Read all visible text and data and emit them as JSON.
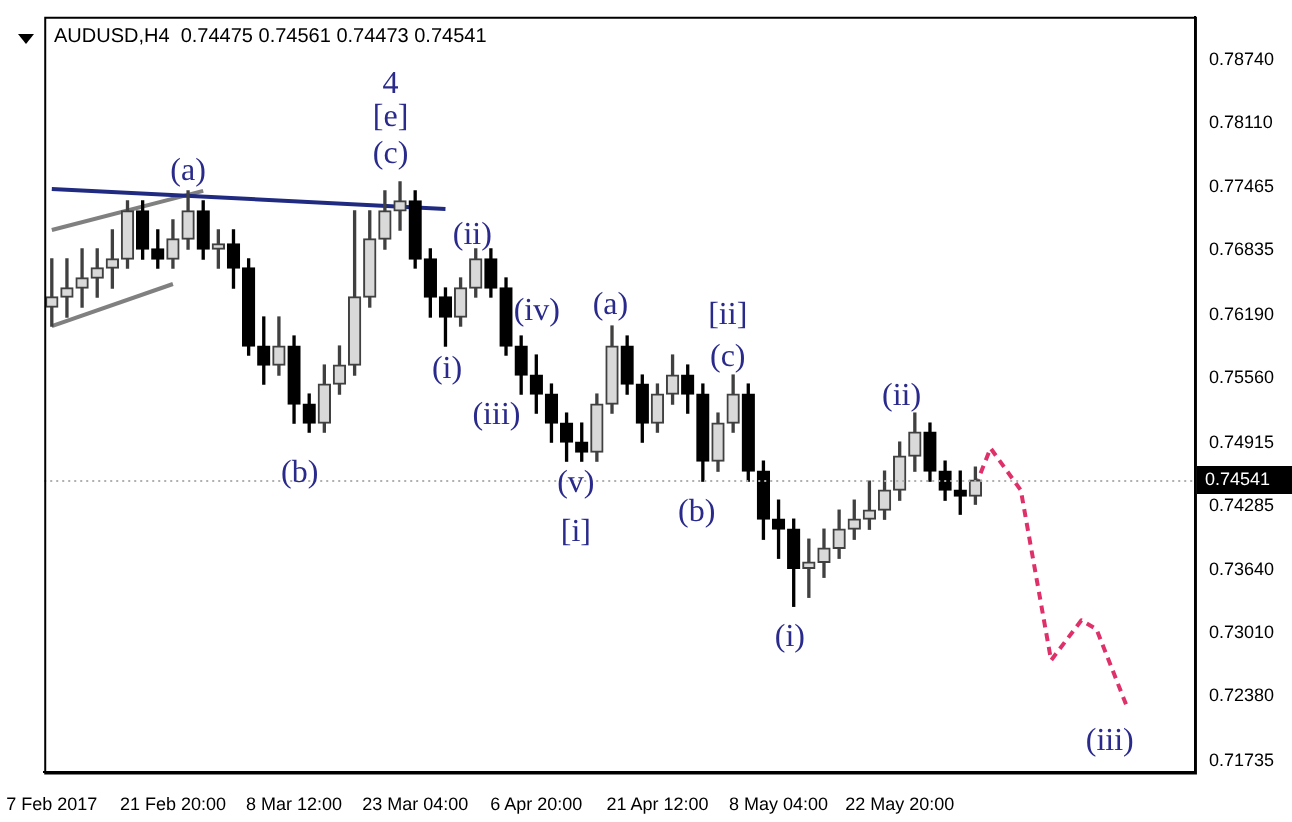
{
  "chart_data": {
    "type": "candlestick",
    "title": "AUDUSD,H4  0.74475 0.74561 0.74473 0.74541",
    "colors": [
      "#404040",
      "#404040",
      "#404040",
      "#404040",
      "#404040",
      "#404040",
      "#000000",
      "#000000",
      "#404040",
      "#404040",
      "#000000",
      "#404040",
      "#000000",
      "#000000",
      "#000000",
      "#404040",
      "#000000",
      "#000000",
      "#404040",
      "#404040",
      "#404040",
      "#404040",
      "#404040",
      "#404040",
      "#000000",
      "#000000",
      "#000000",
      "#404040",
      "#404040",
      "#000000",
      "#000000",
      "#000000",
      "#000000",
      "#000000",
      "#000000",
      "#000000",
      "#404040",
      "#404040",
      "#000000",
      "#000000",
      "#404040",
      "#404040",
      "#000000",
      "#000000",
      "#404040",
      "#404040",
      "#000000",
      "#000000",
      "#000000",
      "#000000",
      "#404040",
      "#404040",
      "#404040",
      "#404040",
      "#404040",
      "#404040",
      "#404040",
      "#404040",
      "#000000",
      "#000000",
      "#000000",
      "#404040",
      null,
      null,
      null,
      null,
      null,
      null,
      null,
      null,
      null,
      null,
      null,
      null,
      null,
      null
    ],
    "categories": [
      "7 Feb 2017",
      null,
      null,
      null,
      null,
      null,
      null,
      null,
      "21 Feb 20:00",
      null,
      null,
      null,
      null,
      null,
      null,
      null,
      "8 Mar 12:00",
      null,
      null,
      null,
      null,
      null,
      null,
      null,
      "23 Mar 04:00",
      null,
      null,
      null,
      null,
      null,
      null,
      null,
      "6 Apr 20:00",
      null,
      null,
      null,
      null,
      null,
      null,
      null,
      "21 Apr 12:00",
      null,
      null,
      null,
      null,
      null,
      null,
      null,
      "8 May 04:00",
      null,
      null,
      null,
      null,
      null,
      null,
      null,
      "22 May 20:00",
      null,
      null,
      null,
      null,
      null,
      null,
      null,
      null,
      null,
      null,
      null,
      null,
      null,
      null,
      null,
      null,
      null,
      null,
      null
    ],
    "ohlc": [
      [
        0.7627,
        0.7675,
        0.7608,
        0.7637
      ],
      [
        0.7637,
        0.7675,
        0.7617,
        0.7646
      ],
      [
        0.7646,
        0.7685,
        0.7627,
        0.7656
      ],
      [
        0.7656,
        0.7685,
        0.7637,
        0.7666
      ],
      [
        0.7666,
        0.7704,
        0.7646,
        0.7675
      ],
      [
        0.7675,
        0.7733,
        0.7666,
        0.7723
      ],
      [
        0.7723,
        0.7733,
        0.7675,
        0.7685
      ],
      [
        0.7685,
        0.7704,
        0.7666,
        0.7675
      ],
      [
        0.7675,
        0.7714,
        0.7666,
        0.7695
      ],
      [
        0.7695,
        0.7743,
        0.7685,
        0.7723
      ],
      [
        0.7723,
        0.7733,
        0.7675,
        0.7685
      ],
      [
        0.7685,
        0.7704,
        0.7666,
        0.769
      ],
      [
        0.769,
        0.7704,
        0.7646,
        0.7666
      ],
      [
        0.7666,
        0.7675,
        0.7579,
        0.7588
      ],
      [
        0.7588,
        0.7617,
        0.755,
        0.7569
      ],
      [
        0.7569,
        0.7617,
        0.7559,
        0.7588
      ],
      [
        0.7588,
        0.7598,
        0.7511,
        0.753
      ],
      [
        0.753,
        0.754,
        0.7502,
        0.7511
      ],
      [
        0.7511,
        0.7569,
        0.7502,
        0.755
      ],
      [
        0.755,
        0.7588,
        0.754,
        0.7569
      ],
      [
        0.7569,
        0.7723,
        0.7559,
        0.7637
      ],
      [
        0.7637,
        0.7723,
        0.7627,
        0.7695
      ],
      [
        0.7695,
        0.7743,
        0.7685,
        0.7723
      ],
      [
        0.7723,
        0.7752,
        0.7704,
        0.7733
      ],
      [
        0.7733,
        0.7743,
        0.7666,
        0.7675
      ],
      [
        0.7675,
        0.7685,
        0.7617,
        0.7637
      ],
      [
        0.7637,
        0.7646,
        0.7588,
        0.7617
      ],
      [
        0.7617,
        0.7656,
        0.7608,
        0.7646
      ],
      [
        0.7646,
        0.7685,
        0.7637,
        0.7675
      ],
      [
        0.7675,
        0.7685,
        0.7637,
        0.7646
      ],
      [
        0.7646,
        0.7656,
        0.7579,
        0.7588
      ],
      [
        0.7588,
        0.7598,
        0.754,
        0.7559
      ],
      [
        0.7559,
        0.7579,
        0.7521,
        0.754
      ],
      [
        0.754,
        0.755,
        0.7492,
        0.7511
      ],
      [
        0.7511,
        0.7521,
        0.7473,
        0.7492
      ],
      [
        0.7492,
        0.7511,
        0.7473,
        0.7482
      ],
      [
        0.7482,
        0.754,
        0.7473,
        0.753
      ],
      [
        0.753,
        0.7608,
        0.7521,
        0.7588
      ],
      [
        0.7588,
        0.7598,
        0.754,
        0.755
      ],
      [
        0.755,
        0.7559,
        0.7492,
        0.7511
      ],
      [
        0.7511,
        0.755,
        0.7502,
        0.754
      ],
      [
        0.754,
        0.7579,
        0.753,
        0.7559
      ],
      [
        0.7559,
        0.7569,
        0.7521,
        0.754
      ],
      [
        0.754,
        0.755,
        0.7453,
        0.7473
      ],
      [
        0.7473,
        0.7521,
        0.7463,
        0.7511
      ],
      [
        0.7511,
        0.7559,
        0.7502,
        0.754
      ],
      [
        0.754,
        0.755,
        0.7453,
        0.7463
      ],
      [
        0.7463,
        0.7473,
        0.7395,
        0.7415
      ],
      [
        0.7415,
        0.7434,
        0.7376,
        0.7405
      ],
      [
        0.7405,
        0.7415,
        0.7328,
        0.7366
      ],
      [
        0.7366,
        0.7395,
        0.7337,
        0.7372
      ],
      [
        0.7372,
        0.7405,
        0.7357,
        0.7386
      ],
      [
        0.7386,
        0.7424,
        0.7376,
        0.7405
      ],
      [
        0.7405,
        0.7434,
        0.7395,
        0.7415
      ],
      [
        0.7415,
        0.7453,
        0.7405,
        0.7424
      ],
      [
        0.7424,
        0.7463,
        0.7415,
        0.7444
      ],
      [
        0.7444,
        0.7492,
        0.7434,
        0.7478
      ],
      [
        0.7478,
        0.7521,
        0.7463,
        0.7502
      ],
      [
        0.7502,
        0.7511,
        0.7453,
        0.7463
      ],
      [
        0.7463,
        0.7473,
        0.7434,
        0.7444
      ],
      [
        0.7444,
        0.7463,
        0.742,
        0.7438
      ],
      [
        0.7438,
        0.7467,
        0.743,
        0.7454
      ],
      null,
      null,
      null,
      null,
      null,
      null,
      null,
      null,
      null,
      null,
      null,
      null,
      null,
      null
    ],
    "series": [
      {
        "type": "line",
        "color": "#1f2a80",
        "values": [
          0.7745,
          null,
          null,
          null,
          null,
          null,
          null,
          null,
          null,
          null,
          null,
          null,
          null,
          null,
          null,
          null,
          null,
          null,
          null,
          null,
          null,
          null,
          null,
          null,
          null,
          null,
          0.7725,
          null,
          null,
          null,
          null,
          null,
          null,
          null,
          null,
          null,
          null,
          null,
          null,
          null,
          null,
          null,
          null,
          null,
          null,
          null,
          null,
          null,
          null,
          null,
          null,
          null,
          null,
          null,
          null,
          null,
          null,
          null,
          null,
          null,
          null,
          null,
          null,
          null,
          null,
          null,
          null,
          null,
          null,
          null,
          null,
          null,
          null,
          null,
          null,
          null
        ]
      },
      {
        "type": "line",
        "color": "#808080",
        "values": [
          0.7704,
          null,
          null,
          null,
          null,
          null,
          null,
          null,
          null,
          null,
          0.7743,
          null,
          null,
          null,
          null,
          null,
          null,
          null,
          null,
          null,
          null,
          null,
          null,
          null,
          null,
          null,
          null,
          null,
          null,
          null,
          null,
          null,
          null,
          null,
          null,
          null,
          null,
          null,
          null,
          null,
          null,
          null,
          null,
          null,
          null,
          null,
          null,
          null,
          null,
          null,
          null,
          null,
          null,
          null,
          null,
          null,
          null,
          null,
          null,
          null,
          null,
          null,
          null,
          null,
          null,
          null,
          null,
          null,
          null,
          null,
          null,
          null,
          null,
          null,
          null,
          null
        ]
      },
      {
        "type": "line",
        "color": "#808080",
        "values": [
          0.7608,
          null,
          null,
          null,
          null,
          null,
          null,
          null,
          0.765,
          null,
          null,
          null,
          null,
          null,
          null,
          null,
          null,
          null,
          null,
          null,
          null,
          null,
          null,
          null,
          null,
          null,
          null,
          null,
          null,
          null,
          null,
          null,
          null,
          null,
          null,
          null,
          null,
          null,
          null,
          null,
          null,
          null,
          null,
          null,
          null,
          null,
          null,
          null,
          null,
          null,
          null,
          null,
          null,
          null,
          null,
          null,
          null,
          null,
          null,
          null,
          null,
          null,
          null,
          null,
          null,
          null,
          null,
          null,
          null,
          null,
          null,
          null,
          null,
          null,
          null,
          null
        ]
      },
      {
        "type": "line",
        "color": "#e0306a",
        "line_style": "dashed",
        "values": [
          null,
          null,
          null,
          null,
          null,
          null,
          null,
          null,
          null,
          null,
          null,
          null,
          null,
          null,
          null,
          null,
          null,
          null,
          null,
          null,
          null,
          null,
          null,
          null,
          null,
          null,
          null,
          null,
          null,
          null,
          null,
          null,
          null,
          null,
          null,
          null,
          null,
          null,
          null,
          null,
          null,
          null,
          null,
          null,
          null,
          null,
          null,
          null,
          null,
          null,
          null,
          null,
          null,
          null,
          null,
          null,
          null,
          null,
          null,
          null,
          null,
          0.7448,
          0.7486,
          null,
          0.7444,
          null,
          0.7274,
          null,
          0.7314,
          0.7305,
          null,
          0.7228,
          null,
          null,
          null,
          null
        ]
      }
    ],
    "ylim": [
      0.7162,
      0.7917
    ],
    "yticks": [
      {
        "value": 0.7874,
        "label": "0.78740"
      },
      {
        "value": 0.7811,
        "label": "0.78110"
      },
      {
        "value": 0.77465,
        "label": "0.77465"
      },
      {
        "value": 0.76835,
        "label": "0.76835"
      },
      {
        "value": 0.7619,
        "label": "0.76190"
      },
      {
        "value": 0.7556,
        "label": "0.75560"
      },
      {
        "value": 0.74915,
        "label": "0.74915"
      },
      {
        "value": 0.74285,
        "label": "0.74285"
      },
      {
        "value": 0.7364,
        "label": "0.73640"
      },
      {
        "value": 0.7301,
        "label": "0.73010"
      },
      {
        "value": 0.7238,
        "label": "0.72380"
      },
      {
        "value": 0.71735,
        "label": "0.71735"
      }
    ],
    "ref_lines": [
      {
        "axis": "y",
        "value": 0.74541,
        "label": "0.74541"
      }
    ],
    "annotations": [
      "4",
      "[e]",
      "(c)",
      "(a)",
      "(b)",
      "(ii)",
      "(i)",
      "(iv)",
      "(iii)",
      "(a)",
      "(v)",
      "[i]",
      "[ii]",
      "(c)",
      "(b)",
      "(i)",
      "(ii)",
      "(iii)"
    ],
    "grid": false,
    "legend": false
  }
}
